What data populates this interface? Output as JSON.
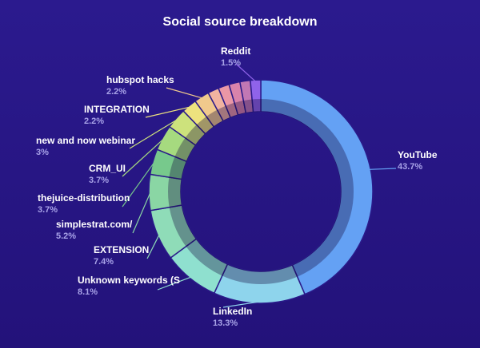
{
  "chart_data": {
    "type": "pie",
    "title": "Social source breakdown",
    "slices": [
      {
        "label": "YouTube",
        "value": 43.7,
        "value_label": "43.7%",
        "color": "#64a1f4"
      },
      {
        "label": "LinkedIn",
        "value": 13.3,
        "value_label": "13.3%",
        "color": "#8ed4ec"
      },
      {
        "label": "Unknown keywords (S",
        "value": 8.1,
        "value_label": "8.1%",
        "color": "#8fe0cf"
      },
      {
        "label": "EXTENSION",
        "value": 7.4,
        "value_label": "7.4%",
        "color": "#8fdcb8"
      },
      {
        "label": "simplestrat.com/",
        "value": 5.2,
        "value_label": "5.2%",
        "color": "#8ad6a4"
      },
      {
        "label": "thejuice-distribution",
        "value": 3.7,
        "value_label": "3.7%",
        "color": "#77c98c"
      },
      {
        "label": "CRM_UI",
        "value": 3.7,
        "value_label": "3.7%",
        "color": "#a6da7f"
      },
      {
        "label": "new and now webinar",
        "value": 3,
        "value_label": "3%",
        "color": "#cde27c"
      },
      {
        "label": "INTEGRATION",
        "value": 2.2,
        "value_label": "2.2%",
        "color": "#ede27e"
      },
      {
        "label": "hubspot hacks",
        "value": 2.2,
        "value_label": "2.2%",
        "color": "#f0c98c"
      },
      {
        "label": "",
        "value": 1.6,
        "value_label": "",
        "color": "#f0b3a0"
      },
      {
        "label": "",
        "value": 1.6,
        "value_label": "",
        "color": "#ea97a6"
      },
      {
        "label": "",
        "value": 1.6,
        "value_label": "",
        "color": "#d983ab"
      },
      {
        "label": "",
        "value": 1.5,
        "value_label": "",
        "color": "#c278b4"
      },
      {
        "label": "Reddit",
        "value": 1.5,
        "value_label": "1.5%",
        "color": "#8f63ea"
      }
    ]
  }
}
